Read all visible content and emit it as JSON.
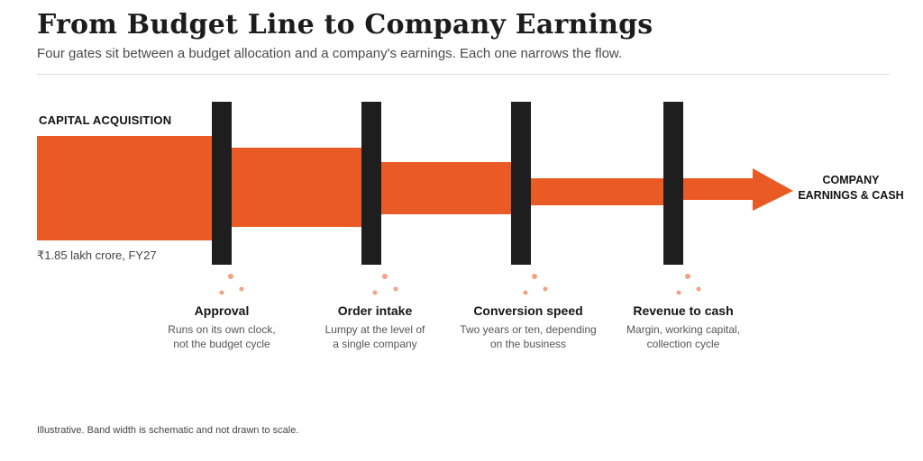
{
  "header": {
    "title": "From Budget Line to Company Earnings",
    "subtitle": "Four gates sit between a budget allocation and a company's earnings. Each one narrows the flow."
  },
  "source": {
    "label": "CAPITAL ACQUISITION",
    "value": "₹1.85 lakh crore, FY27"
  },
  "destination": {
    "line1": "COMPANY",
    "line2": "EARNINGS & CASH"
  },
  "gates": [
    {
      "title": "Approval",
      "desc1": "Runs on its own clock,",
      "desc2": "not the budget cycle"
    },
    {
      "title": "Order intake",
      "desc1": "Lumpy at the level of",
      "desc2": "a single company"
    },
    {
      "title": "Conversion speed",
      "desc1": "Two years or ten, depending",
      "desc2": "on the business"
    },
    {
      "title": "Revenue to cash",
      "desc1": "Margin, working capital,",
      "desc2": "collection cycle"
    }
  ],
  "footnote": "Illustrative. Band width is schematic and not drawn to scale.",
  "colors": {
    "band": "#e95a24",
    "gate": "#1e1e1e",
    "dots": "#f0a384"
  }
}
